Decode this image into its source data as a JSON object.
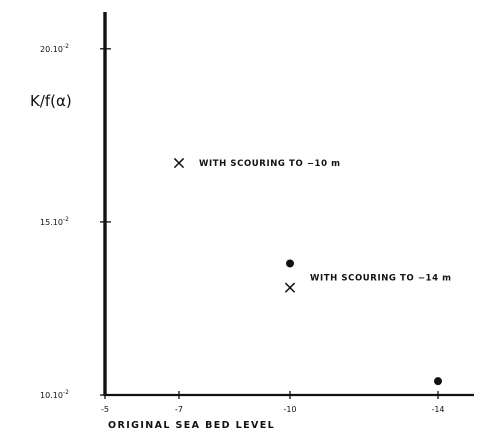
{
  "chart_data": {
    "type": "scatter",
    "title": "",
    "xlabel": "ORIGINAL  SEA  BED  LEVEL",
    "ylabel": "K/f(α)",
    "x_reversed": true,
    "xlim": [
      -5,
      -15
    ],
    "ylim": [
      0.1,
      0.205
    ],
    "x_ticks": [
      {
        "value": -5,
        "label": "-5"
      },
      {
        "value": -7,
        "label": "-7"
      },
      {
        "value": -10,
        "label": "-10"
      },
      {
        "value": -14,
        "label": "-14"
      }
    ],
    "y_ticks": [
      {
        "value": 0.1,
        "base": "10.10",
        "exp": "-2"
      },
      {
        "value": 0.15,
        "base": "15.10",
        "exp": "-2"
      },
      {
        "value": 0.2,
        "base": "20.10",
        "exp": "-2"
      }
    ],
    "grid": false,
    "series": [
      {
        "marker": "dot",
        "points": [
          {
            "x": -10,
            "y": 0.138
          },
          {
            "x": -14,
            "y": 0.104
          }
        ]
      },
      {
        "marker": "cross",
        "points": [
          {
            "x": -7,
            "y": 0.167
          },
          {
            "x": -10,
            "y": 0.131
          }
        ]
      }
    ],
    "annotations": [
      {
        "text": "WITH  SCOURING  TO  −10 m",
        "x": -7,
        "y": 0.167
      },
      {
        "text": "WITH  SCOURING  TO  −14 m",
        "x": -10,
        "y": 0.134
      }
    ]
  }
}
